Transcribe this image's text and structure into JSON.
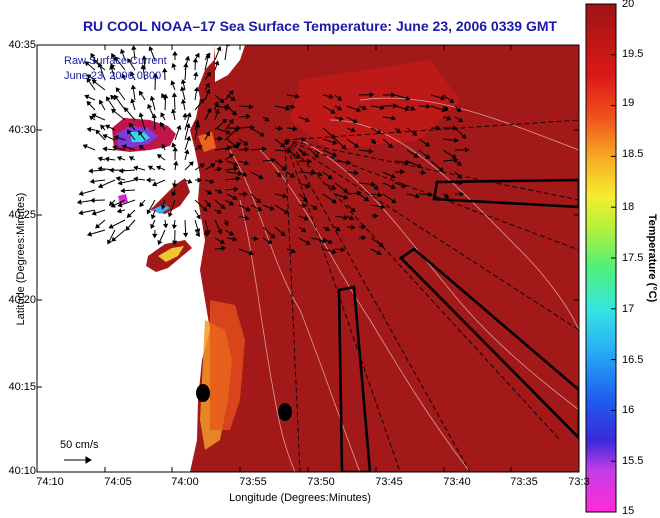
{
  "title": "RU COOL   NOAA–17  Sea Surface Temperature:  June 23, 2006 0339 GMT",
  "legend_lines": [
    "Raw Surface Current",
    "June 23, 2006 0300"
  ],
  "axes": {
    "xlabel": "Longitude (Degrees:Minutes)",
    "ylabel": "Latitude (Degrees:Minutes)",
    "xticks": [
      "74:10",
      "74:05",
      "74:00",
      "73:55",
      "73:50",
      "73:45",
      "73:40",
      "73:35",
      "73:3"
    ],
    "yticks": [
      "40:35",
      "40:30",
      "40:25",
      "40:20",
      "40:15",
      "40:10"
    ]
  },
  "colorbar": {
    "label": "Temperature (°C)",
    "ticks": [
      "20",
      "19.5",
      "19",
      "18.5",
      "18",
      "17.5",
      "17",
      "16.5",
      "16",
      "15.5",
      "15"
    ],
    "min": 15,
    "max": 20
  },
  "scale_label": "50 cm/s",
  "colors": {
    "title": "#1a1aa8",
    "warm_water": "#a31818",
    "land": "#ffffff"
  }
}
